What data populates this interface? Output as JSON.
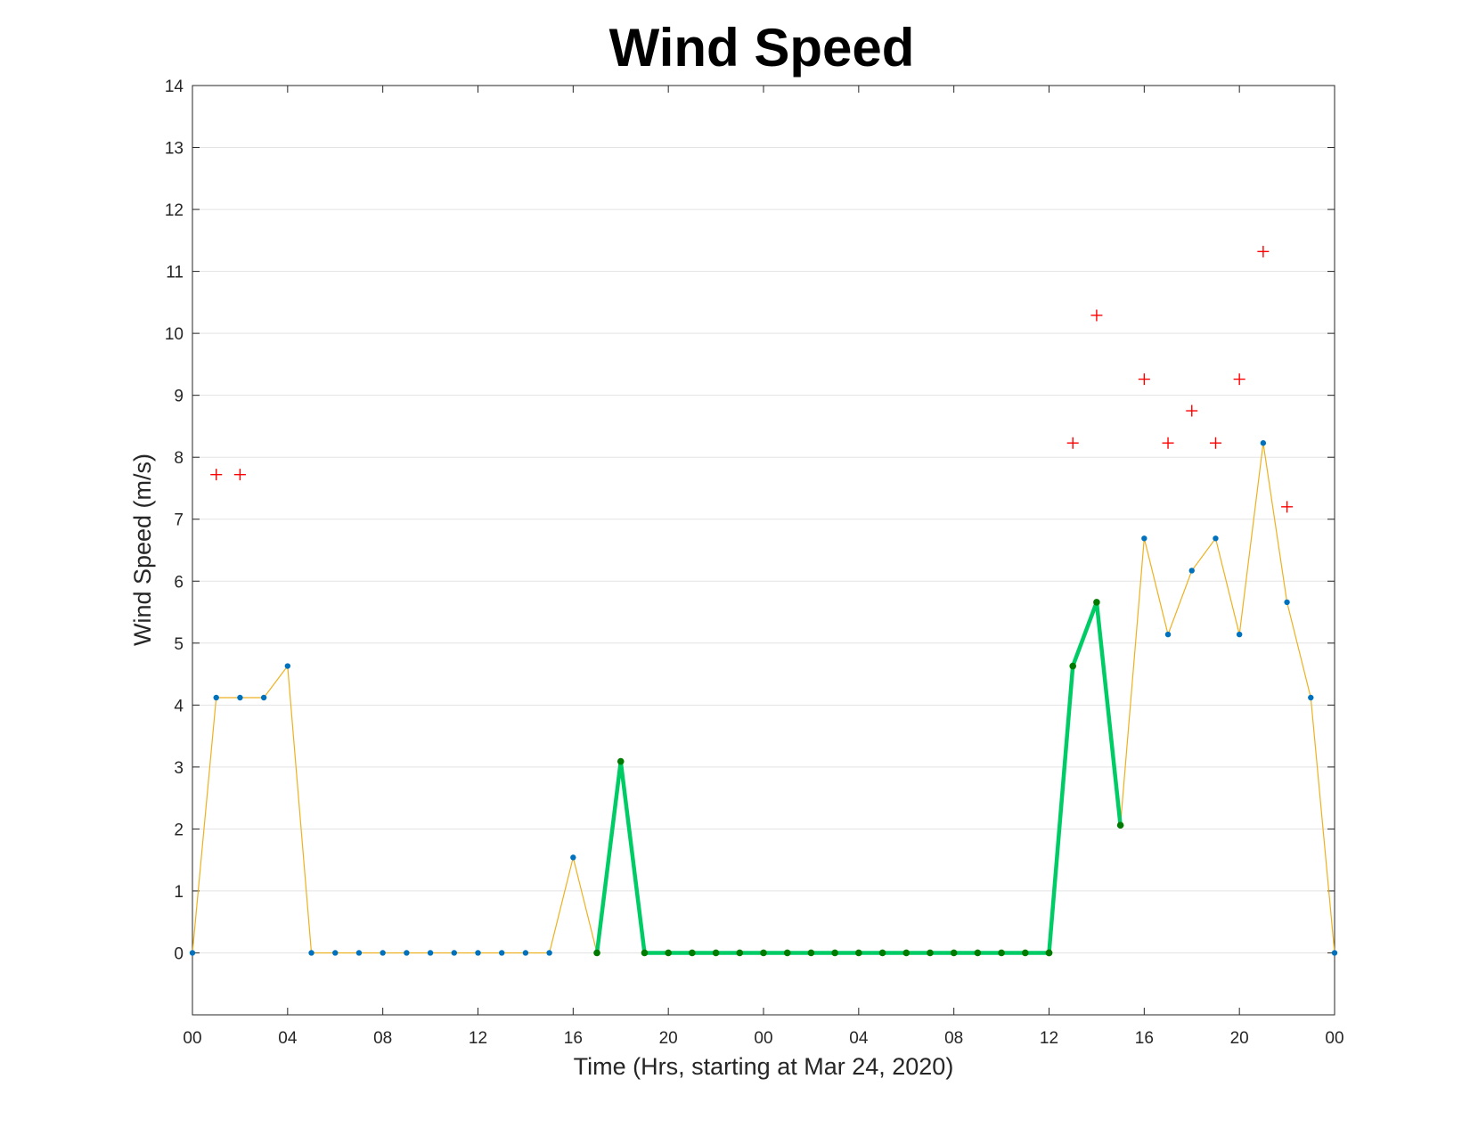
{
  "chart_data": {
    "type": "line",
    "title": "Wind Speed",
    "xlabel": "Time (Hrs, starting at Mar 24, 2020)",
    "ylabel": "Wind Speed (m/s)",
    "x_unit": "hours from Mar 24, 2020 00:00",
    "xlim": [
      0,
      48
    ],
    "ylim": [
      -1,
      14
    ],
    "yticks": [
      0,
      1,
      2,
      3,
      4,
      5,
      6,
      7,
      8,
      9,
      10,
      11,
      12,
      13,
      14
    ],
    "xticks": [
      {
        "x": 0,
        "label": "00"
      },
      {
        "x": 4,
        "label": "04"
      },
      {
        "x": 8,
        "label": "08"
      },
      {
        "x": 12,
        "label": "12"
      },
      {
        "x": 16,
        "label": "16"
      },
      {
        "x": 20,
        "label": "20"
      },
      {
        "x": 24,
        "label": "00"
      },
      {
        "x": 28,
        "label": "04"
      },
      {
        "x": 32,
        "label": "08"
      },
      {
        "x": 36,
        "label": "12"
      },
      {
        "x": 40,
        "label": "16"
      },
      {
        "x": 44,
        "label": "20"
      },
      {
        "x": 48,
        "label": "00"
      }
    ],
    "grid": "horizontal",
    "colors": {
      "wind_line": "#EDB120",
      "wind_marker": "#0072BD",
      "highlight_line": "#00CC66",
      "highlight_marker": "#007A00",
      "gust_marker": "#FF0000"
    },
    "series": [
      {
        "style": "thin line with dot markers",
        "x": [
          0,
          1,
          2,
          3,
          4,
          5,
          6,
          7,
          8,
          9,
          10,
          11,
          12,
          13,
          14,
          15,
          16,
          17,
          18,
          19,
          20,
          21,
          22,
          23,
          24,
          25,
          26,
          27,
          28,
          29,
          30,
          31,
          32,
          33,
          34,
          35,
          36,
          37,
          38,
          39,
          40,
          41,
          42,
          43,
          44,
          45,
          46,
          47,
          48
        ],
        "y": [
          0,
          4.12,
          4.12,
          4.12,
          4.63,
          0,
          0,
          0,
          0,
          0,
          0,
          0,
          0,
          0,
          0,
          0,
          1.54,
          0,
          3.09,
          0,
          0,
          0,
          0,
          0,
          0,
          0,
          0,
          0,
          0,
          0,
          0,
          0,
          0,
          0,
          0,
          0,
          0,
          4.63,
          5.66,
          2.06,
          6.69,
          5.14,
          6.17,
          6.69,
          5.14,
          8.23,
          5.66,
          4.12,
          0
        ]
      },
      {
        "style": "thick highlighted segments with dot markers",
        "segments": [
          {
            "x": [
              17,
              18,
              19,
              20,
              21,
              22,
              23,
              24,
              25,
              26,
              27,
              28,
              29,
              30,
              31,
              32,
              33,
              34,
              35,
              36
            ],
            "y": [
              0,
              3.09,
              0,
              0,
              0,
              0,
              0,
              0,
              0,
              0,
              0,
              0,
              0,
              0,
              0,
              0,
              0,
              0,
              0,
              0
            ]
          },
          {
            "x": [
              36,
              37,
              38,
              39
            ],
            "y": [
              0,
              4.63,
              5.66,
              2.06
            ]
          }
        ]
      },
      {
        "style": "plus markers",
        "x": [
          1,
          2,
          37,
          38,
          40,
          41,
          42,
          43,
          44,
          45,
          46
        ],
        "y": [
          7.72,
          7.72,
          8.23,
          10.29,
          9.26,
          8.23,
          8.75,
          8.23,
          9.26,
          11.32,
          7.2
        ]
      }
    ]
  }
}
